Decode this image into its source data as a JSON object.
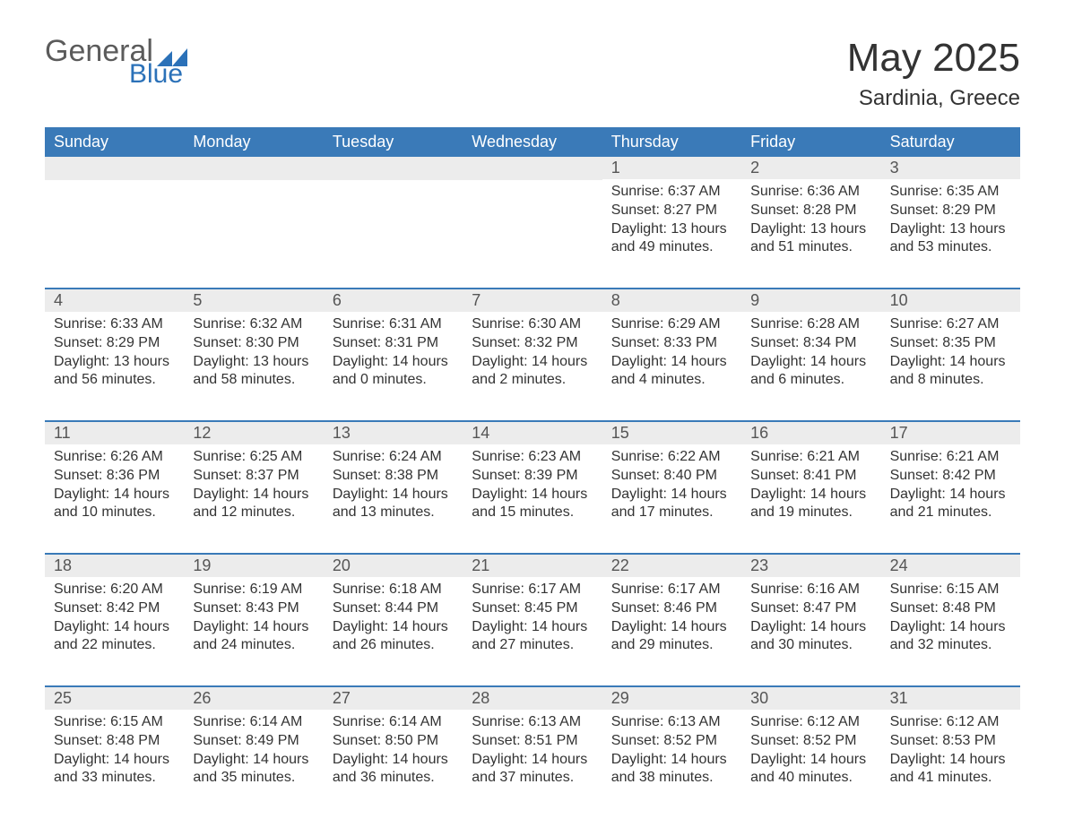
{
  "colors": {
    "header_bg": "#3a7ab8",
    "header_text": "#ffffff",
    "daynum_bg": "#ececec",
    "body_text": "#333333",
    "logo_gray": "#5b5b5b",
    "logo_blue": "#2b71b8",
    "week_divider": "#3a7ab8",
    "page_bg": "#ffffff"
  },
  "typography": {
    "title_fontsize": 44,
    "subtitle_fontsize": 24,
    "dayheader_fontsize": 18,
    "daynum_fontsize": 18,
    "body_fontsize": 16
  },
  "logo": {
    "text_general": "General",
    "text_blue": "Blue"
  },
  "title": "May 2025",
  "subtitle": "Sardinia, Greece",
  "day_headers": [
    "Sunday",
    "Monday",
    "Tuesday",
    "Wednesday",
    "Thursday",
    "Friday",
    "Saturday"
  ],
  "weeks": [
    [
      null,
      null,
      null,
      null,
      {
        "n": "1",
        "sunrise": "Sunrise: 6:37 AM",
        "sunset": "Sunset: 8:27 PM",
        "daylight": "Daylight: 13 hours and 49 minutes."
      },
      {
        "n": "2",
        "sunrise": "Sunrise: 6:36 AM",
        "sunset": "Sunset: 8:28 PM",
        "daylight": "Daylight: 13 hours and 51 minutes."
      },
      {
        "n": "3",
        "sunrise": "Sunrise: 6:35 AM",
        "sunset": "Sunset: 8:29 PM",
        "daylight": "Daylight: 13 hours and 53 minutes."
      }
    ],
    [
      {
        "n": "4",
        "sunrise": "Sunrise: 6:33 AM",
        "sunset": "Sunset: 8:29 PM",
        "daylight": "Daylight: 13 hours and 56 minutes."
      },
      {
        "n": "5",
        "sunrise": "Sunrise: 6:32 AM",
        "sunset": "Sunset: 8:30 PM",
        "daylight": "Daylight: 13 hours and 58 minutes."
      },
      {
        "n": "6",
        "sunrise": "Sunrise: 6:31 AM",
        "sunset": "Sunset: 8:31 PM",
        "daylight": "Daylight: 14 hours and 0 minutes."
      },
      {
        "n": "7",
        "sunrise": "Sunrise: 6:30 AM",
        "sunset": "Sunset: 8:32 PM",
        "daylight": "Daylight: 14 hours and 2 minutes."
      },
      {
        "n": "8",
        "sunrise": "Sunrise: 6:29 AM",
        "sunset": "Sunset: 8:33 PM",
        "daylight": "Daylight: 14 hours and 4 minutes."
      },
      {
        "n": "9",
        "sunrise": "Sunrise: 6:28 AM",
        "sunset": "Sunset: 8:34 PM",
        "daylight": "Daylight: 14 hours and 6 minutes."
      },
      {
        "n": "10",
        "sunrise": "Sunrise: 6:27 AM",
        "sunset": "Sunset: 8:35 PM",
        "daylight": "Daylight: 14 hours and 8 minutes."
      }
    ],
    [
      {
        "n": "11",
        "sunrise": "Sunrise: 6:26 AM",
        "sunset": "Sunset: 8:36 PM",
        "daylight": "Daylight: 14 hours and 10 minutes."
      },
      {
        "n": "12",
        "sunrise": "Sunrise: 6:25 AM",
        "sunset": "Sunset: 8:37 PM",
        "daylight": "Daylight: 14 hours and 12 minutes."
      },
      {
        "n": "13",
        "sunrise": "Sunrise: 6:24 AM",
        "sunset": "Sunset: 8:38 PM",
        "daylight": "Daylight: 14 hours and 13 minutes."
      },
      {
        "n": "14",
        "sunrise": "Sunrise: 6:23 AM",
        "sunset": "Sunset: 8:39 PM",
        "daylight": "Daylight: 14 hours and 15 minutes."
      },
      {
        "n": "15",
        "sunrise": "Sunrise: 6:22 AM",
        "sunset": "Sunset: 8:40 PM",
        "daylight": "Daylight: 14 hours and 17 minutes."
      },
      {
        "n": "16",
        "sunrise": "Sunrise: 6:21 AM",
        "sunset": "Sunset: 8:41 PM",
        "daylight": "Daylight: 14 hours and 19 minutes."
      },
      {
        "n": "17",
        "sunrise": "Sunrise: 6:21 AM",
        "sunset": "Sunset: 8:42 PM",
        "daylight": "Daylight: 14 hours and 21 minutes."
      }
    ],
    [
      {
        "n": "18",
        "sunrise": "Sunrise: 6:20 AM",
        "sunset": "Sunset: 8:42 PM",
        "daylight": "Daylight: 14 hours and 22 minutes."
      },
      {
        "n": "19",
        "sunrise": "Sunrise: 6:19 AM",
        "sunset": "Sunset: 8:43 PM",
        "daylight": "Daylight: 14 hours and 24 minutes."
      },
      {
        "n": "20",
        "sunrise": "Sunrise: 6:18 AM",
        "sunset": "Sunset: 8:44 PM",
        "daylight": "Daylight: 14 hours and 26 minutes."
      },
      {
        "n": "21",
        "sunrise": "Sunrise: 6:17 AM",
        "sunset": "Sunset: 8:45 PM",
        "daylight": "Daylight: 14 hours and 27 minutes."
      },
      {
        "n": "22",
        "sunrise": "Sunrise: 6:17 AM",
        "sunset": "Sunset: 8:46 PM",
        "daylight": "Daylight: 14 hours and 29 minutes."
      },
      {
        "n": "23",
        "sunrise": "Sunrise: 6:16 AM",
        "sunset": "Sunset: 8:47 PM",
        "daylight": "Daylight: 14 hours and 30 minutes."
      },
      {
        "n": "24",
        "sunrise": "Sunrise: 6:15 AM",
        "sunset": "Sunset: 8:48 PM",
        "daylight": "Daylight: 14 hours and 32 minutes."
      }
    ],
    [
      {
        "n": "25",
        "sunrise": "Sunrise: 6:15 AM",
        "sunset": "Sunset: 8:48 PM",
        "daylight": "Daylight: 14 hours and 33 minutes."
      },
      {
        "n": "26",
        "sunrise": "Sunrise: 6:14 AM",
        "sunset": "Sunset: 8:49 PM",
        "daylight": "Daylight: 14 hours and 35 minutes."
      },
      {
        "n": "27",
        "sunrise": "Sunrise: 6:14 AM",
        "sunset": "Sunset: 8:50 PM",
        "daylight": "Daylight: 14 hours and 36 minutes."
      },
      {
        "n": "28",
        "sunrise": "Sunrise: 6:13 AM",
        "sunset": "Sunset: 8:51 PM",
        "daylight": "Daylight: 14 hours and 37 minutes."
      },
      {
        "n": "29",
        "sunrise": "Sunrise: 6:13 AM",
        "sunset": "Sunset: 8:52 PM",
        "daylight": "Daylight: 14 hours and 38 minutes."
      },
      {
        "n": "30",
        "sunrise": "Sunrise: 6:12 AM",
        "sunset": "Sunset: 8:52 PM",
        "daylight": "Daylight: 14 hours and 40 minutes."
      },
      {
        "n": "31",
        "sunrise": "Sunrise: 6:12 AM",
        "sunset": "Sunset: 8:53 PM",
        "daylight": "Daylight: 14 hours and 41 minutes."
      }
    ]
  ]
}
